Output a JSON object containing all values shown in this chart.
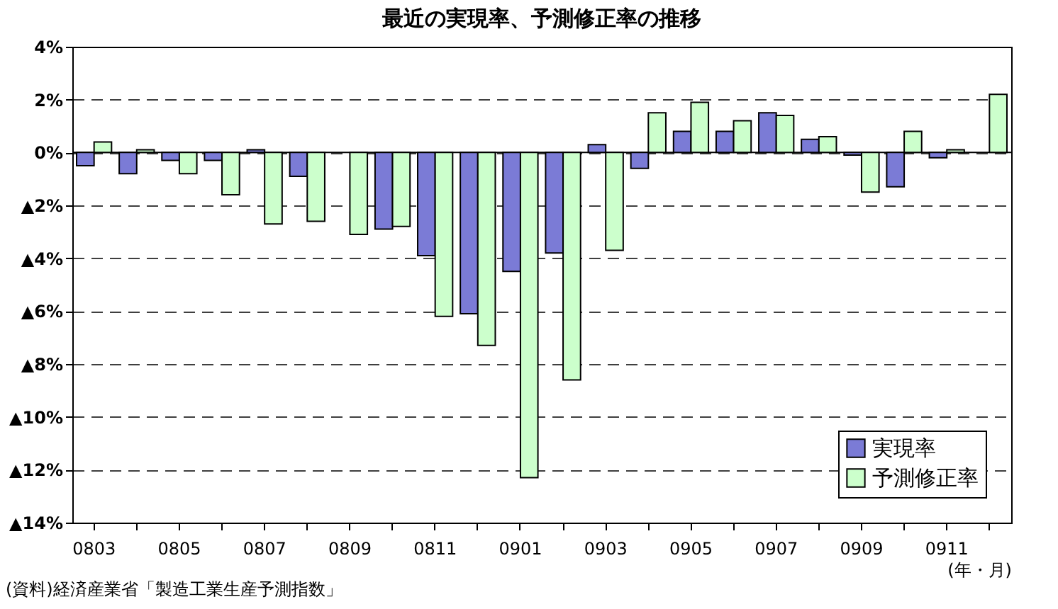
{
  "chart_data": {
    "type": "bar",
    "title": "最近の実現率、予測修正率の推移",
    "xlabel": "(年・月)",
    "annotations": [
      "(資料)経済産業省「製造工業生産予測指数」"
    ],
    "categories": [
      "0803",
      null,
      "0805",
      null,
      "0807",
      null,
      "0809",
      null,
      "0811",
      null,
      "0901",
      null,
      "0903",
      null,
      "0905",
      null,
      "0907",
      null,
      "0909",
      null,
      "0911",
      null
    ],
    "series": [
      {
        "name": "実現率",
        "color": "#7b7bd6",
        "values": [
          -0.5,
          -0.8,
          -0.3,
          -0.3,
          0.1,
          -0.9,
          null,
          -2.9,
          -3.9,
          -6.1,
          -4.5,
          -3.8,
          0.3,
          -0.6,
          0.8,
          0.8,
          1.5,
          0.5,
          -0.1,
          -1.3,
          -0.2,
          null
        ]
      },
      {
        "name": "予測修正率",
        "color": "#ccffcc",
        "values": [
          0.4,
          0.1,
          -0.8,
          -1.6,
          -2.7,
          -2.6,
          -3.1,
          -2.8,
          -6.2,
          -7.3,
          -12.3,
          -8.6,
          -3.7,
          1.5,
          1.9,
          1.2,
          1.4,
          0.6,
          -1.5,
          0.8,
          0.1,
          2.2
        ]
      }
    ],
    "ylim": [
      -14,
      4
    ],
    "yticks": [
      {
        "value": 4,
        "label": "4%"
      },
      {
        "value": 2,
        "label": "2%"
      },
      {
        "value": 0,
        "label": "0%"
      },
      {
        "value": -2,
        "label": "▲2%"
      },
      {
        "value": -4,
        "label": "▲4%"
      },
      {
        "value": -6,
        "label": "▲6%"
      },
      {
        "value": -8,
        "label": "▲8%"
      },
      {
        "value": -10,
        "label": "▲10%"
      },
      {
        "value": -12,
        "label": "▲12%"
      },
      {
        "value": -14,
        "label": "▲14%"
      }
    ],
    "ref_lines": [
      {
        "axis": "y",
        "value": 0,
        "color": "#000000",
        "line_style": "solid"
      }
    ],
    "grid": "y",
    "legend": "bottom right"
  }
}
